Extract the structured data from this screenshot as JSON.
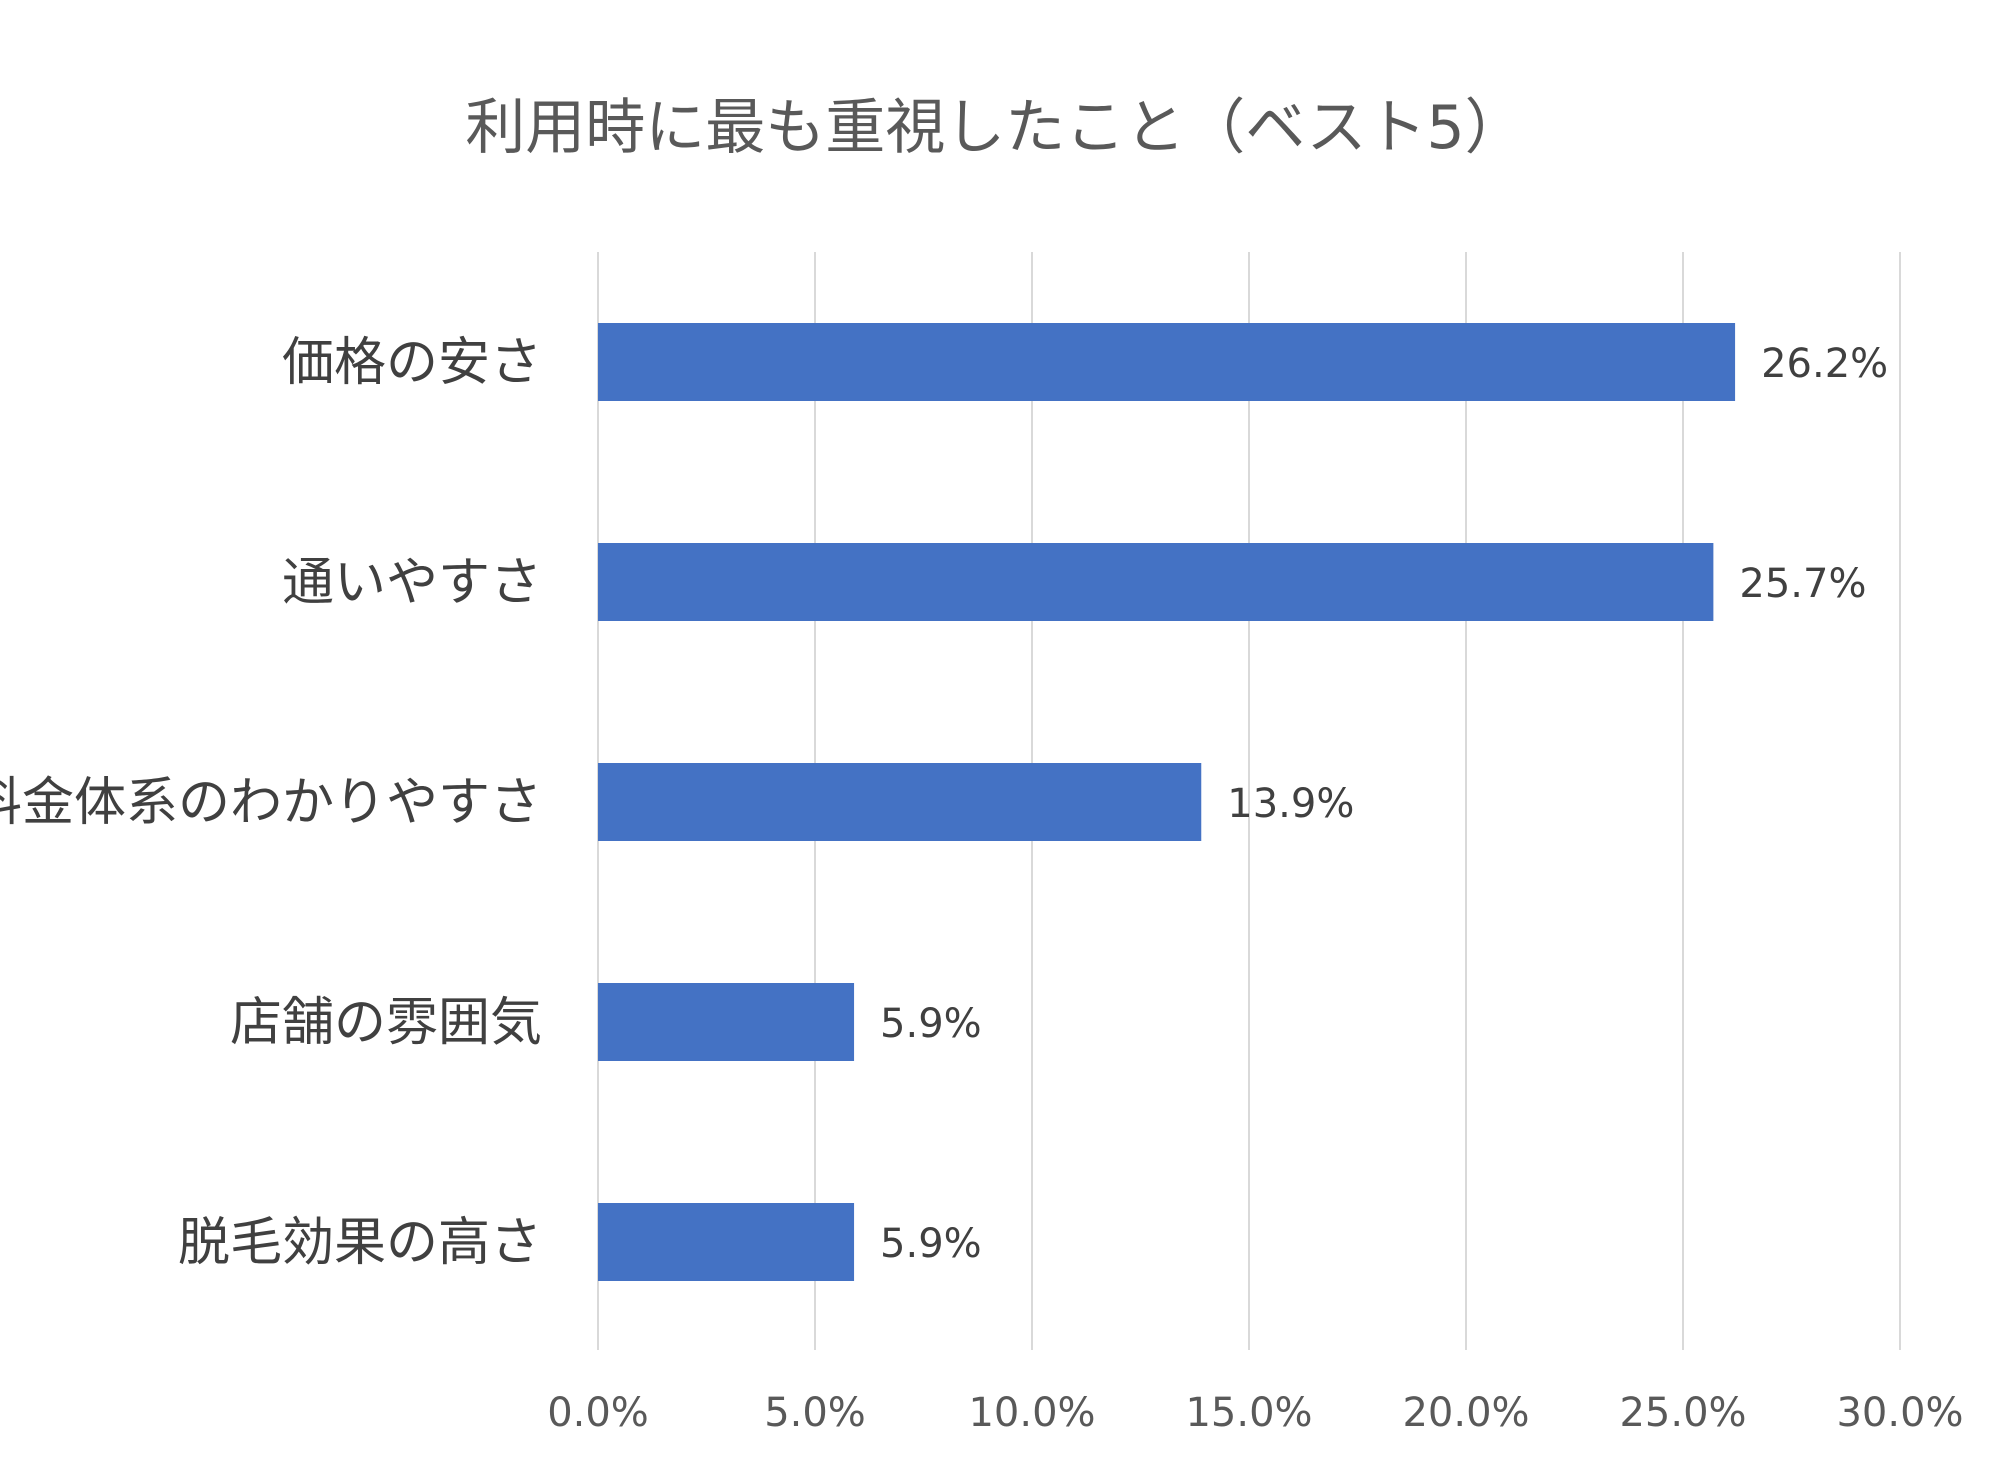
{
  "chart_data": {
    "type": "bar",
    "orientation": "horizontal",
    "title": "利用時に最も重視したこと（ベスト5）",
    "categories": [
      "価格の安さ",
      "通いやすさ",
      "料金体系のわかりやすさ",
      "店舗の雰囲気",
      "脱毛効果の高さ"
    ],
    "values": [
      26.2,
      25.7,
      13.9,
      5.9,
      5.9
    ],
    "data_labels": [
      "26.2%",
      "25.7%",
      "13.9%",
      "5.9%",
      "5.9%"
    ],
    "x_ticks": [
      0,
      5,
      10,
      15,
      20,
      25,
      30
    ],
    "x_tick_labels": [
      "0.0%",
      "5.0%",
      "10.0%",
      "15.0%",
      "20.0%",
      "25.0%",
      "30.0%"
    ],
    "xlim": [
      0,
      30
    ],
    "grid": true,
    "legend": false,
    "colors": {
      "bar": "#4472C4",
      "grid": "#D9D9D9",
      "title": "#595959",
      "category_label": "#404040",
      "tick_label": "#595959",
      "data_label": "#404040"
    }
  }
}
